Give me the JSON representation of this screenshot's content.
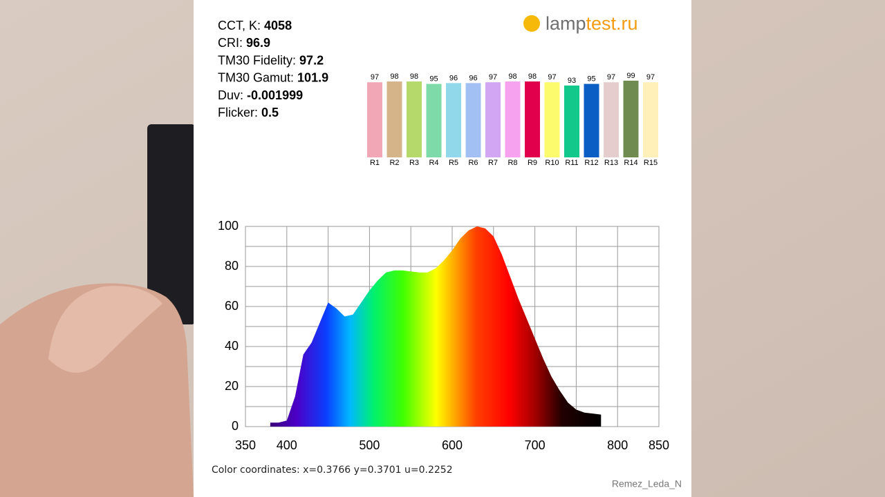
{
  "stats": [
    {
      "label": "CCT, K:",
      "value": 4058
    },
    {
      "label": "CRI:",
      "value": 96.9
    },
    {
      "label": "TM30 Fidelity:",
      "value": 97.2
    },
    {
      "label": "TM30 Gamut:",
      "value": 101.9
    },
    {
      "label": "Duv:",
      "value": -0.001999
    },
    {
      "label": "Flicker:",
      "value": 0.5
    }
  ],
  "logo": {
    "part1": "lamp",
    "part2": "test.ru"
  },
  "chart_data": [
    {
      "type": "bar",
      "categories": [
        "R1",
        "R2",
        "R3",
        "R4",
        "R5",
        "R6",
        "R7",
        "R8",
        "R9",
        "R10",
        "R11",
        "R12",
        "R13",
        "R14",
        "R15"
      ],
      "values": [
        97,
        98,
        98,
        95,
        96,
        96,
        97,
        98,
        98,
        97,
        93,
        95,
        97,
        99,
        97
      ],
      "colors": [
        "#f2a7b6",
        "#d6b48a",
        "#b6d96b",
        "#7edba9",
        "#90d8ea",
        "#a2c0f3",
        "#d3a6f3",
        "#f7a2ee",
        "#e0004b",
        "#fbfb6d",
        "#12c98b",
        "#0b5fc4",
        "#e6cdcd",
        "#6f8b50",
        "#fff0b9"
      ],
      "ylim": [
        4,
        100
      ]
    },
    {
      "type": "area",
      "x": [
        380,
        390,
        400,
        410,
        420,
        430,
        440,
        450,
        460,
        470,
        480,
        490,
        500,
        510,
        520,
        530,
        540,
        550,
        560,
        570,
        580,
        590,
        600,
        610,
        620,
        630,
        640,
        650,
        660,
        670,
        680,
        690,
        700,
        710,
        720,
        730,
        740,
        750,
        760,
        770,
        780
      ],
      "values": [
        2,
        2,
        3,
        15,
        36,
        42,
        52,
        62,
        59,
        55,
        56,
        62,
        68,
        73,
        77,
        78,
        78,
        77.5,
        77,
        77,
        79,
        83,
        88,
        94,
        98,
        100,
        99,
        95,
        86,
        75,
        64,
        54,
        44,
        34,
        25,
        18,
        12,
        8.5,
        7,
        6.5,
        6
      ],
      "xlim": [
        350,
        850
      ],
      "ylim": [
        0,
        100
      ],
      "xticks": [
        350,
        400,
        500,
        600,
        700,
        800,
        850
      ],
      "x_minor_ticks": [
        450,
        550,
        650,
        750
      ],
      "yticks": [
        0,
        20,
        40,
        60,
        80,
        100
      ],
      "y_minor_ticks": [
        10,
        30,
        50,
        70,
        90
      ],
      "grid": true
    }
  ],
  "footer": {
    "coordinates": "Color coordinates: x=0.3766 y=0.3701 u=0.2252",
    "credit": "Remez_Leda_N"
  }
}
